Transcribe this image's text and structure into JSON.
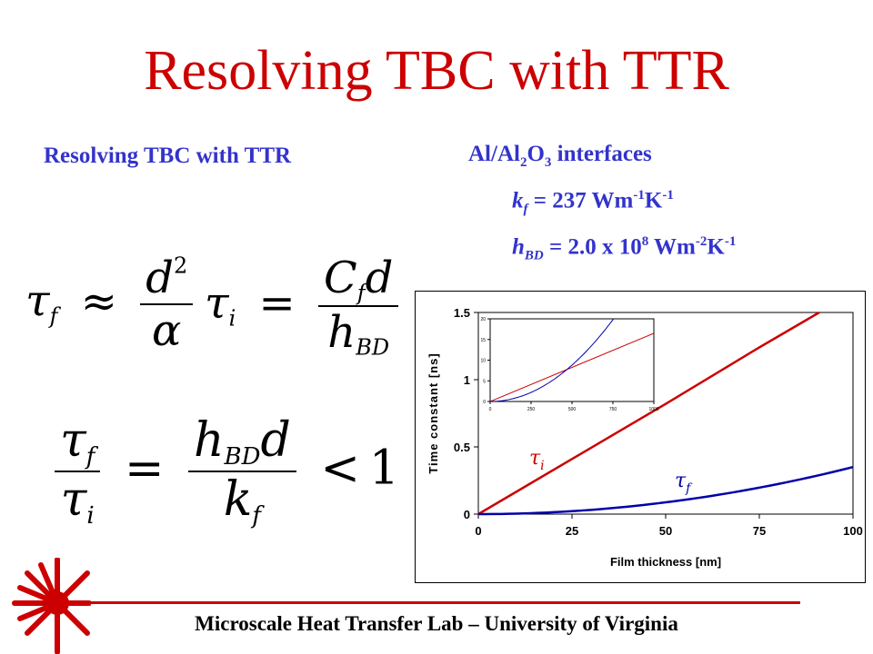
{
  "title": "Resolving TBC with TTR",
  "subtitle": "Resolving TBC with TTR",
  "interfaces": {
    "heading_main": "Al/Al",
    "heading_sub1": "2",
    "heading_mid": "O",
    "heading_sub2": "3",
    "heading_tail": " interfaces",
    "kf_sym": "k",
    "kf_sub": "f",
    "kf_val": " = 237 Wm",
    "kf_exp1": "-1",
    "kf_unit": "K",
    "kf_exp2": "-1",
    "hbd_sym": "h",
    "hbd_sub": "BD",
    "hbd_val": " = 2.0 x 10",
    "hbd_exp": "8",
    "hbd_unit1": " Wm",
    "hbd_exp2": "-2",
    "hbd_unit2": "K",
    "hbd_exp3": "-1"
  },
  "formulas": {
    "tau": "τ",
    "sub_f": "f",
    "sub_i": "i",
    "approx": "≈",
    "d": "d",
    "sq": "2",
    "alpha": "α",
    "eq": "=",
    "C": "C",
    "h": "h",
    "sub_BD": "BD",
    "k": "k",
    "lt": "<",
    "one": "1"
  },
  "footer": "Microscale Heat Transfer Lab – University of Virginia",
  "colors": {
    "title": "#cc0000",
    "text_blue": "#3333cc",
    "tau_i": "#cc0000",
    "tau_f": "#0000aa"
  },
  "chart_data": [
    {
      "type": "line",
      "xlabel": "Film thickness [nm]",
      "ylabel": "Time constant [ns]",
      "xlim": [
        0,
        100
      ],
      "ylim": [
        0,
        1.5
      ],
      "xticks": [
        "0",
        "25",
        "50",
        "75",
        "100"
      ],
      "yticks": [
        "0",
        "0.5",
        "1",
        "1.5"
      ],
      "series": [
        {
          "name": "τi",
          "color": "#cc0000",
          "x": [
            0,
            25,
            50,
            75,
            91
          ],
          "y": [
            0,
            0.41,
            0.82,
            1.24,
            1.5
          ]
        },
        {
          "name": "τf",
          "color": "#0000aa",
          "x": [
            0,
            25,
            50,
            75,
            100
          ],
          "y": [
            0,
            0.022,
            0.088,
            0.198,
            0.35
          ]
        }
      ],
      "annotations": [
        {
          "text": "τ",
          "sub": "i",
          "color": "#cc0000"
        },
        {
          "text": "τ",
          "sub": "f",
          "color": "#0000aa"
        }
      ]
    },
    {
      "type": "line",
      "inset": true,
      "xlim": [
        0,
        1000
      ],
      "ylim": [
        0,
        20
      ],
      "xticks": [
        "0",
        "250",
        "500",
        "750",
        "1000"
      ],
      "yticks": [
        "0",
        "5",
        "10",
        "15",
        "20"
      ],
      "series": [
        {
          "color": "#cc0000",
          "x": [
            0,
            1000
          ],
          "y": [
            0,
            16.5
          ]
        },
        {
          "color": "#0000aa",
          "x": [
            0,
            250,
            500,
            750,
            800
          ],
          "y": [
            0,
            2.2,
            8.8,
            19.8,
            22.5
          ]
        }
      ]
    }
  ]
}
